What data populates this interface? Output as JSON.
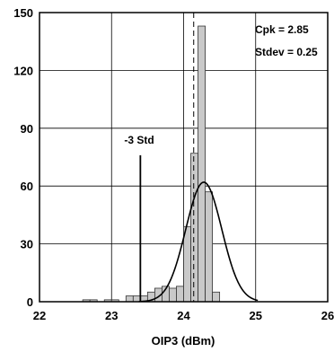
{
  "chart_data": {
    "type": "bar",
    "xlabel": "OIP3 (dBm)",
    "ylabel": "",
    "xlim": [
      22,
      26
    ],
    "ylim": [
      0,
      150
    ],
    "x_ticks": [
      "22",
      "23",
      "24",
      "25",
      "26"
    ],
    "y_ticks": [
      "0",
      "30",
      "60",
      "90",
      "120",
      "150"
    ],
    "grid": true,
    "bin_width": 0.1,
    "bins": [
      {
        "x0": 22.6,
        "value": 1
      },
      {
        "x0": 22.7,
        "value": 1
      },
      {
        "x0": 22.9,
        "value": 1
      },
      {
        "x0": 23.0,
        "value": 1
      },
      {
        "x0": 23.2,
        "value": 3
      },
      {
        "x0": 23.3,
        "value": 3
      },
      {
        "x0": 23.4,
        "value": 3
      },
      {
        "x0": 23.5,
        "value": 5
      },
      {
        "x0": 23.6,
        "value": 7
      },
      {
        "x0": 23.7,
        "value": 8
      },
      {
        "x0": 23.8,
        "value": 7
      },
      {
        "x0": 23.9,
        "value": 8
      },
      {
        "x0": 24.0,
        "value": 39
      },
      {
        "x0": 24.1,
        "value": 77
      },
      {
        "x0": 24.2,
        "value": 143
      },
      {
        "x0": 24.3,
        "value": 57
      },
      {
        "x0": 24.4,
        "value": 5
      }
    ],
    "normal_curve": {
      "mean": 24.28,
      "peak": 62,
      "sigma": 0.25
    },
    "mean_line_x": 24.14,
    "minus3std_line_x": 23.4,
    "minus3std_line_top": 76,
    "annotations": {
      "minus3std": "-3 Std",
      "cpk": "Cpk = 2.85",
      "stdev": "Stdev = 0.25"
    }
  }
}
